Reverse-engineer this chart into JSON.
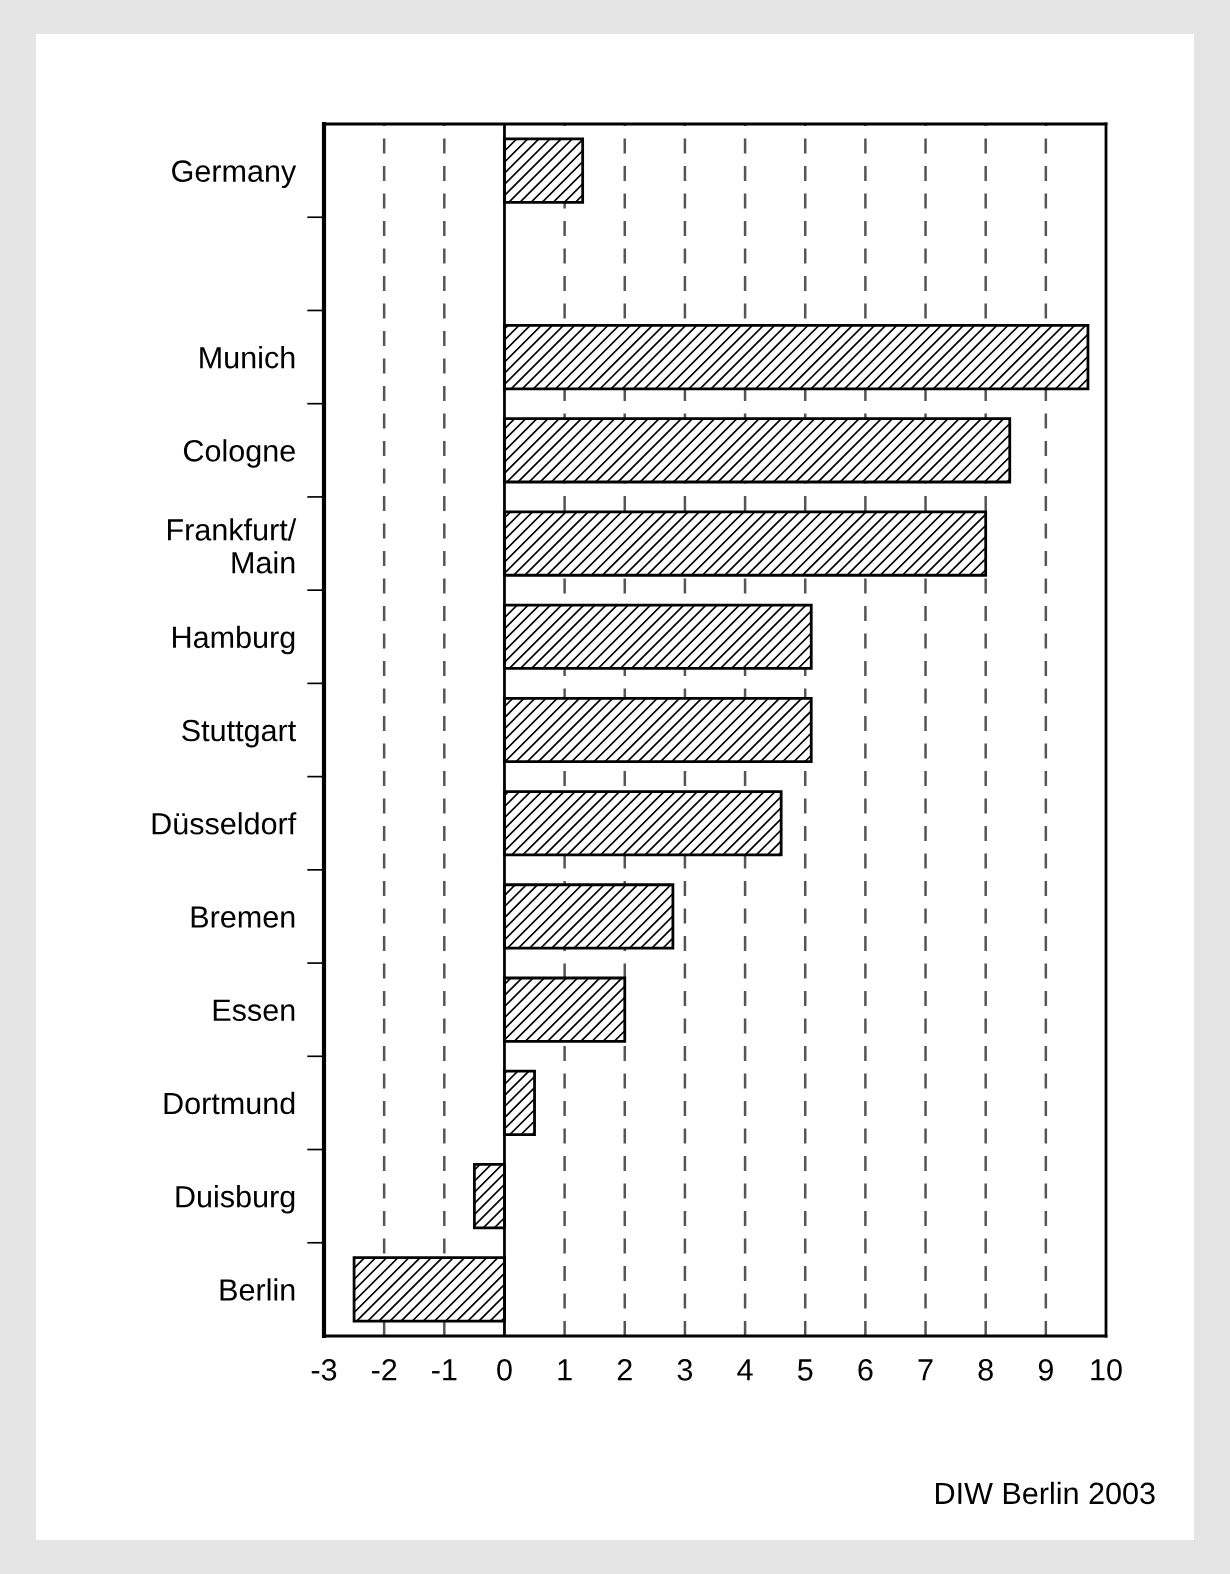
{
  "chart_data": {
    "type": "bar",
    "orientation": "horizontal",
    "categories": [
      "Germany",
      null,
      "Munich",
      "Cologne",
      "Frankfurt/\nMain",
      "Hamburg",
      "Stuttgart",
      "Düsseldorf",
      "Bremen",
      "Essen",
      "Dortmund",
      "Duisburg",
      "Berlin"
    ],
    "values": [
      1.3,
      null,
      9.7,
      8.4,
      8.0,
      5.1,
      5.1,
      4.6,
      2.8,
      2.0,
      0.5,
      -0.5,
      -2.5
    ],
    "color": "#000000",
    "xlim": [
      -3,
      10
    ],
    "xticks": [
      -3,
      -2,
      -1,
      0,
      1,
      2,
      3,
      4,
      5,
      6,
      7,
      8,
      9,
      10
    ],
    "grid": "x",
    "line_style": "dashed",
    "legend": false,
    "annotations": [
      "DIW Berlin 2003"
    ]
  }
}
